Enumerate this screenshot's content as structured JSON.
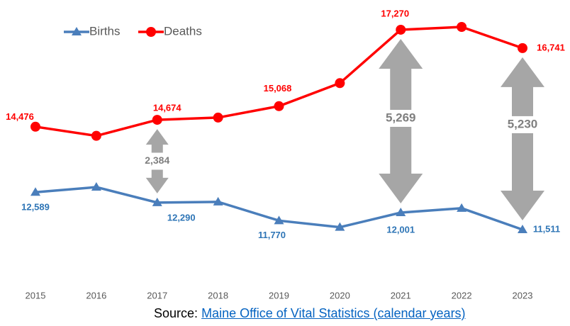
{
  "chart_data": {
    "type": "line",
    "categories": [
      "2015",
      "2016",
      "2017",
      "2018",
      "2019",
      "2020",
      "2021",
      "2022",
      "2023"
    ],
    "series": [
      {
        "name": "Births",
        "color": "#4a7ebb",
        "label_color": "#2e75b6",
        "marker": "triangle",
        "values": [
          12589,
          12735,
          12290,
          12310,
          11770,
          11580,
          12001,
          12127,
          11511
        ],
        "value_labels": [
          "12,589",
          null,
          "12,290",
          null,
          "11,770",
          null,
          "12,001",
          null,
          "11,511"
        ]
      },
      {
        "name": "Deaths",
        "color": "#ff0000",
        "label_color": "#ff0000",
        "marker": "circle",
        "values": [
          14476,
          14213,
          14674,
          14739,
          15068,
          15732,
          17270,
          17351,
          16741
        ],
        "value_labels": [
          "14,476",
          null,
          "14,674",
          null,
          "15,068",
          null,
          "17,270",
          null,
          "16,741"
        ]
      }
    ],
    "annotations": [
      {
        "x": "2017",
        "value": 2384,
        "label": "2,384"
      },
      {
        "x": "2021",
        "value": 5269,
        "label": "5,269"
      },
      {
        "x": "2023",
        "value": 5230,
        "label": "5,230"
      }
    ],
    "source_prefix": "Source:",
    "source_link": "Maine Office of Vital Statistics (calendar years)",
    "legend": "top-left"
  }
}
